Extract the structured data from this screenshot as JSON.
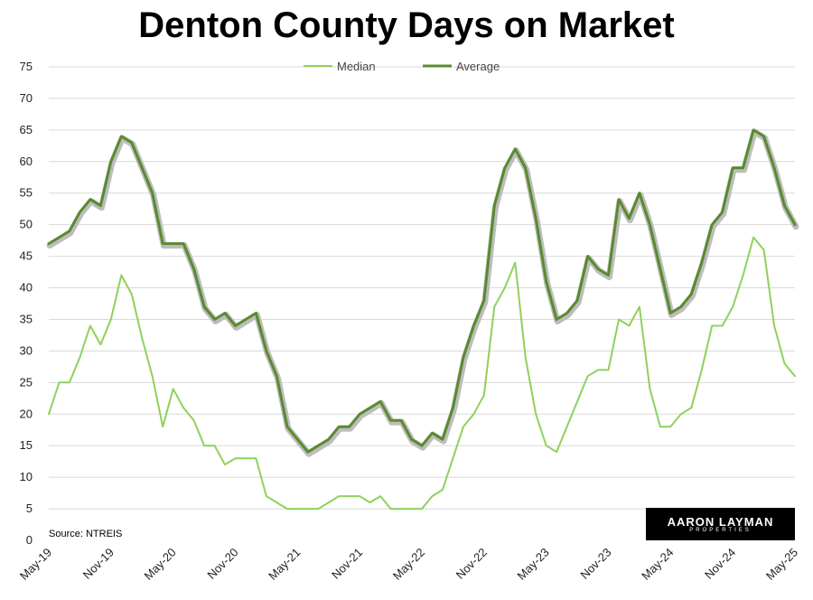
{
  "chart_data": {
    "type": "line",
    "title": "Denton County Days on Market",
    "source": "Source: NTREIS",
    "logo": {
      "main": "AARON LAYMAN",
      "sub": "PROPERTIES"
    },
    "ylim": [
      0,
      75
    ],
    "yticks": [
      0,
      5,
      10,
      15,
      20,
      25,
      30,
      35,
      40,
      45,
      50,
      55,
      60,
      65,
      70,
      75
    ],
    "grid": true,
    "legend_placement": "top-center",
    "x_tick_labels": [
      "May-19",
      "Nov-19",
      "May-20",
      "Nov-20",
      "May-21",
      "Nov-21",
      "May-22",
      "Nov-22",
      "May-23",
      "Nov-23",
      "May-24",
      "Nov-24",
      "May-25"
    ],
    "series": [
      {
        "name": "Median",
        "color": "#8fd15c",
        "values": [
          20,
          25,
          25,
          29,
          34,
          31,
          35,
          42,
          39,
          32,
          26,
          18,
          24,
          21,
          19,
          15,
          15,
          12,
          13,
          13,
          13,
          7,
          6,
          5,
          5,
          5,
          5,
          6,
          7,
          7,
          7,
          6,
          7,
          5,
          5,
          5,
          5,
          7,
          8,
          13,
          18,
          20,
          23,
          37,
          40,
          44,
          29,
          20,
          15,
          14,
          18,
          22,
          26,
          27,
          27,
          35,
          34,
          37,
          24,
          18,
          18,
          20,
          21,
          27,
          34,
          34,
          37,
          42,
          48,
          46,
          34,
          28,
          26
        ]
      },
      {
        "name": "Average",
        "color": "#5a8a2e",
        "values": [
          47,
          48,
          49,
          52,
          54,
          53,
          60,
          64,
          63,
          59,
          55,
          47,
          47,
          47,
          43,
          37,
          35,
          36,
          34,
          35,
          36,
          30,
          26,
          18,
          16,
          14,
          15,
          16,
          18,
          18,
          20,
          21,
          22,
          19,
          19,
          16,
          15,
          17,
          16,
          21,
          29,
          34,
          38,
          53,
          59,
          62,
          59,
          51,
          41,
          35,
          36,
          38,
          45,
          43,
          42,
          54,
          51,
          55,
          50,
          43,
          36,
          37,
          39,
          44,
          50,
          52,
          59,
          59,
          65,
          64,
          59,
          53,
          50
        ]
      }
    ]
  }
}
